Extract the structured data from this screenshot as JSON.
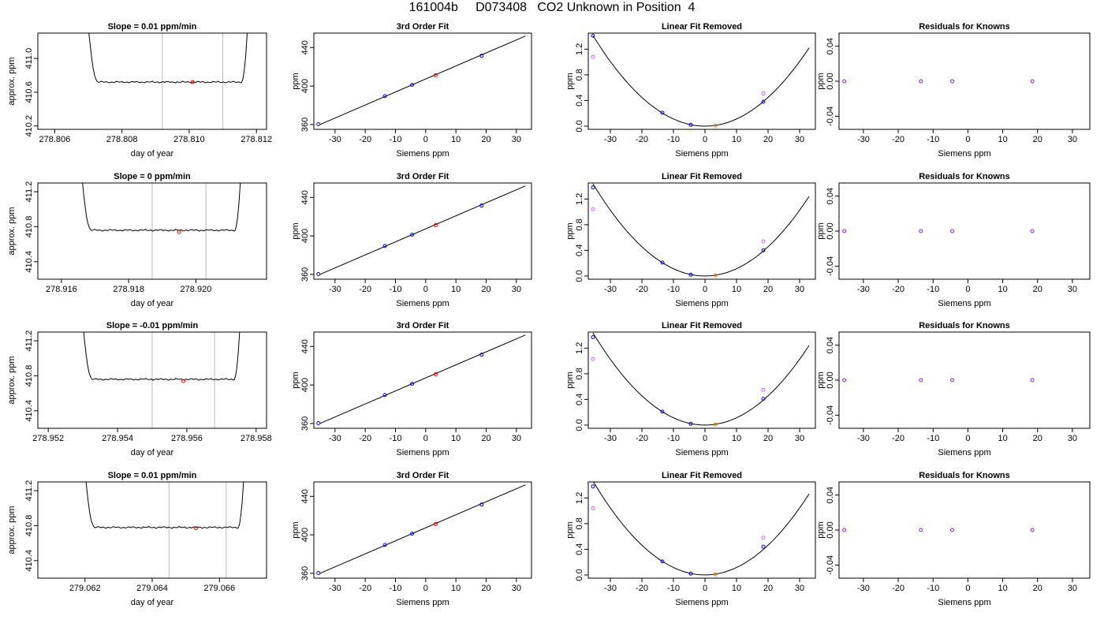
{
  "main_title": "161004b     D073408   CO2 Unknown in Position  4",
  "colors": {
    "known": "#0000ff",
    "unknown": "#ff0000",
    "residual_unknown": "#ff8000",
    "fit_ref": "#cc66ff",
    "line": "#000000",
    "vline": "#bbbbbb"
  },
  "chart_data": [
    {
      "type": "line",
      "row": 1,
      "col": 1,
      "title": "Slope =  0.01  ppm/min",
      "xlabel": "day of year",
      "ylabel": "approx. ppm",
      "xlim": [
        278.8055,
        278.8123
      ],
      "ylim": [
        410.16,
        411.3
      ],
      "xticks": [
        278.806,
        278.808,
        278.81,
        278.812
      ],
      "xticklabels": [
        "278.806",
        "278.808",
        "278.810",
        "278.812"
      ],
      "yticks": [
        410.2,
        410.6,
        411.0
      ],
      "yticklabels": [
        "410.2",
        "410.6",
        "411.0"
      ],
      "trace_window": [
        278.8069,
        278.8118
      ],
      "plateau": 410.72,
      "vlines": [
        278.8092,
        278.811
      ],
      "marker": {
        "x": 278.8101,
        "y": 410.72
      }
    },
    {
      "type": "scatter",
      "row": 1,
      "col": 2,
      "title": "3rd Order Fit",
      "xlabel": "Siemens ppm",
      "ylabel": "ppm",
      "xlim": [
        -37,
        35
      ],
      "ylim": [
        355,
        455
      ],
      "xticks": [
        -30,
        -20,
        -10,
        0,
        10,
        20,
        30
      ],
      "yticks": [
        360,
        400,
        440
      ],
      "line": [
        [
          -35,
          360
        ],
        [
          33,
          452
        ]
      ],
      "known_points": [
        [
          -35.5,
          360.3
        ],
        [
          -13.5,
          389.5
        ],
        [
          -4.5,
          401.2
        ],
        [
          18.5,
          431.5
        ]
      ],
      "unknown_point": [
        3.3,
        411.2
      ]
    },
    {
      "type": "scatter",
      "row": 1,
      "col": 3,
      "title": "Linear Fit Removed",
      "xlabel": "Siemens ppm",
      "ylabel": "ppm",
      "xlim": [
        -37,
        35
      ],
      "ylim": [
        -0.05,
        1.45
      ],
      "xticks": [
        -30,
        -20,
        -10,
        0,
        10,
        20,
        30
      ],
      "yticks": [
        0.0,
        0.4,
        0.8,
        1.2
      ],
      "yticklabels": [
        "0.0",
        "0.4",
        "0.8",
        "1.2"
      ],
      "curve_coef": 0.00112,
      "curve_xrange": [
        -35.5,
        33
      ],
      "known_points": [
        [
          -35.5,
          1.41
        ],
        [
          -13.5,
          0.21
        ],
        [
          -4.5,
          0.02
        ],
        [
          18.5,
          0.38
        ]
      ],
      "ref_points": [
        [
          -35.5,
          1.08
        ],
        [
          18.5,
          0.51
        ]
      ],
      "unknown_point": [
        3.3,
        0.01
      ]
    },
    {
      "type": "scatter",
      "row": 1,
      "col": 4,
      "title": "Residuals for Knowns",
      "xlabel": "Siemens ppm",
      "ylabel": "ppm",
      "xlim": [
        -37,
        35
      ],
      "ylim": [
        -0.055,
        0.055
      ],
      "xticks": [
        -30,
        -20,
        -10,
        0,
        10,
        20,
        30
      ],
      "yticks": [
        -0.04,
        0.0,
        0.04
      ],
      "yticklabels": [
        "-0.04",
        "0.00",
        "0.04"
      ],
      "known_points": [
        [
          -35.5,
          0
        ],
        [
          -13.5,
          0
        ],
        [
          -4.5,
          0
        ],
        [
          18.5,
          0
        ]
      ]
    },
    {
      "type": "line",
      "row": 2,
      "col": 1,
      "title": "Slope =  0  ppm/min",
      "xlabel": "day of year",
      "ylabel": "approx. ppm",
      "xlim": [
        278.9153,
        278.9221
      ],
      "ylim": [
        410.2,
        411.3
      ],
      "xticks": [
        278.916,
        278.918,
        278.92
      ],
      "xticklabels": [
        "278.916",
        "278.918",
        "278.920"
      ],
      "yticks": [
        410.4,
        410.8,
        411.2
      ],
      "yticklabels": [
        "410.4",
        "410.8",
        "411.2"
      ],
      "trace_window": [
        278.9165,
        278.9214
      ],
      "plateau": 410.76,
      "vlines": [
        278.9187,
        278.9203
      ],
      "marker": {
        "x": 278.9195,
        "y": 410.74
      }
    },
    {
      "type": "scatter",
      "row": 2,
      "col": 2,
      "title": "3rd Order Fit",
      "xlabel": "Siemens ppm",
      "ylabel": "ppm",
      "xlim": [
        -37,
        35
      ],
      "ylim": [
        355,
        455
      ],
      "xticks": [
        -30,
        -20,
        -10,
        0,
        10,
        20,
        30
      ],
      "yticks": [
        360,
        400,
        440
      ],
      "line": [
        [
          -35,
          360
        ],
        [
          33,
          452
        ]
      ],
      "known_points": [
        [
          -35.5,
          360.3
        ],
        [
          -13.5,
          389.5
        ],
        [
          -4.5,
          401.2
        ],
        [
          18.5,
          431.5
        ]
      ],
      "unknown_point": [
        3.3,
        411.2
      ]
    },
    {
      "type": "scatter",
      "row": 2,
      "col": 3,
      "title": "Linear Fit Removed",
      "xlabel": "Siemens ppm",
      "ylabel": "ppm",
      "xlim": [
        -37,
        35
      ],
      "ylim": [
        -0.05,
        1.45
      ],
      "xticks": [
        -30,
        -20,
        -10,
        0,
        10,
        20,
        30
      ],
      "yticks": [
        0.0,
        0.4,
        0.8,
        1.2
      ],
      "yticklabels": [
        "0.0",
        "0.4",
        "0.8",
        "1.2"
      ],
      "curve_coef": 0.00114,
      "curve_xrange": [
        -35.5,
        33
      ],
      "known_points": [
        [
          -35.5,
          1.38
        ],
        [
          -13.5,
          0.21
        ],
        [
          -4.5,
          0.02
        ],
        [
          18.5,
          0.4
        ]
      ],
      "ref_points": [
        [
          -35.5,
          1.04
        ],
        [
          18.5,
          0.54
        ]
      ],
      "unknown_point": [
        3.3,
        0.01
      ]
    },
    {
      "type": "scatter",
      "row": 2,
      "col": 4,
      "title": "Residuals for Knowns",
      "xlabel": "Siemens ppm",
      "ylabel": "ppm",
      "xlim": [
        -37,
        35
      ],
      "ylim": [
        -0.055,
        0.055
      ],
      "xticks": [
        -30,
        -20,
        -10,
        0,
        10,
        20,
        30
      ],
      "yticks": [
        -0.04,
        0.0,
        0.04
      ],
      "yticklabels": [
        "-0.04",
        "0.00",
        "0.04"
      ],
      "known_points": [
        [
          -35.5,
          0
        ],
        [
          -13.5,
          0
        ],
        [
          -4.5,
          0
        ],
        [
          18.5,
          0
        ]
      ]
    },
    {
      "type": "line",
      "row": 3,
      "col": 1,
      "title": "Slope =  -0.01  ppm/min",
      "xlabel": "day of year",
      "ylabel": "approx. ppm",
      "xlim": [
        278.9517,
        278.9583
      ],
      "ylim": [
        410.2,
        411.3
      ],
      "xticks": [
        278.952,
        278.954,
        278.956,
        278.958
      ],
      "xticklabels": [
        "278.952",
        "278.954",
        "278.956",
        "278.958"
      ],
      "yticks": [
        410.4,
        410.8,
        411.2
      ],
      "yticklabels": [
        "410.4",
        "410.8",
        "411.2"
      ],
      "trace_window": [
        278.9529,
        278.9576
      ],
      "plateau": 410.76,
      "vlines": [
        278.955,
        278.9568
      ],
      "marker": {
        "x": 278.9559,
        "y": 410.74
      }
    },
    {
      "type": "scatter",
      "row": 3,
      "col": 2,
      "title": "3rd Order Fit",
      "xlabel": "Siemens ppm",
      "ylabel": "ppm",
      "xlim": [
        -37,
        35
      ],
      "ylim": [
        355,
        455
      ],
      "xticks": [
        -30,
        -20,
        -10,
        0,
        10,
        20,
        30
      ],
      "yticks": [
        360,
        400,
        440
      ],
      "line": [
        [
          -35,
          360
        ],
        [
          33,
          452
        ]
      ],
      "known_points": [
        [
          -35.5,
          360.3
        ],
        [
          -13.5,
          389.5
        ],
        [
          -4.5,
          401.2
        ],
        [
          18.5,
          431.5
        ]
      ],
      "unknown_point": [
        3.3,
        411.2
      ]
    },
    {
      "type": "scatter",
      "row": 3,
      "col": 3,
      "title": "Linear Fit Removed",
      "xlabel": "Siemens ppm",
      "ylabel": "ppm",
      "xlim": [
        -37,
        35
      ],
      "ylim": [
        -0.05,
        1.45
      ],
      "xticks": [
        -30,
        -20,
        -10,
        0,
        10,
        20,
        30
      ],
      "yticks": [
        0.0,
        0.4,
        0.8,
        1.2
      ],
      "yticklabels": [
        "0.0",
        "0.4",
        "0.8",
        "1.2"
      ],
      "curve_coef": 0.00114,
      "curve_xrange": [
        -35.5,
        33
      ],
      "known_points": [
        [
          -35.5,
          1.37
        ],
        [
          -13.5,
          0.21
        ],
        [
          -4.5,
          0.02
        ],
        [
          18.5,
          0.41
        ]
      ],
      "ref_points": [
        [
          -35.5,
          1.03
        ],
        [
          18.5,
          0.55
        ]
      ],
      "unknown_point": [
        3.3,
        0.01
      ]
    },
    {
      "type": "scatter",
      "row": 3,
      "col": 4,
      "title": "Residuals for Knowns",
      "xlabel": "Siemens ppm",
      "ylabel": "ppm",
      "xlim": [
        -37,
        35
      ],
      "ylim": [
        -0.055,
        0.055
      ],
      "xticks": [
        -30,
        -20,
        -10,
        0,
        10,
        20,
        30
      ],
      "yticks": [
        -0.04,
        0.0,
        0.04
      ],
      "yticklabels": [
        "-0.04",
        "0.00",
        "0.04"
      ],
      "known_points": [
        [
          -35.5,
          0
        ],
        [
          -13.5,
          0
        ],
        [
          -4.5,
          0
        ],
        [
          18.5,
          0
        ]
      ]
    },
    {
      "type": "line",
      "row": 4,
      "col": 1,
      "title": "Slope =  0.01  ppm/min",
      "xlabel": "day of year",
      "ylabel": "approx. ppm",
      "xlim": [
        279.0606,
        279.0674
      ],
      "ylim": [
        410.2,
        411.3
      ],
      "xticks": [
        279.062,
        279.064,
        279.066
      ],
      "xticklabels": [
        "279.062",
        "279.064",
        "279.066"
      ],
      "yticks": [
        410.4,
        410.8,
        411.2
      ],
      "yticklabels": [
        "410.4",
        "410.8",
        "411.2"
      ],
      "trace_window": [
        279.0619,
        279.0668
      ],
      "plateau": 410.78,
      "vlines": [
        279.0645,
        279.0662
      ],
      "marker": {
        "x": 279.0653,
        "y": 410.77
      }
    },
    {
      "type": "scatter",
      "row": 4,
      "col": 2,
      "title": "3rd Order Fit",
      "xlabel": "Siemens ppm",
      "ylabel": "ppm",
      "xlim": [
        -37,
        35
      ],
      "ylim": [
        355,
        455
      ],
      "xticks": [
        -30,
        -20,
        -10,
        0,
        10,
        20,
        30
      ],
      "yticks": [
        360,
        400,
        440
      ],
      "line": [
        [
          -35,
          360
        ],
        [
          33,
          452
        ]
      ],
      "known_points": [
        [
          -35.5,
          360.3
        ],
        [
          -13.5,
          389.5
        ],
        [
          -4.5,
          401.2
        ],
        [
          18.5,
          431.5
        ]
      ],
      "unknown_point": [
        3.3,
        411.2
      ]
    },
    {
      "type": "scatter",
      "row": 4,
      "col": 3,
      "title": "Linear Fit Removed",
      "xlabel": "Siemens ppm",
      "ylabel": "ppm",
      "xlim": [
        -37,
        35
      ],
      "ylim": [
        -0.05,
        1.45
      ],
      "xticks": [
        -30,
        -20,
        -10,
        0,
        10,
        20,
        30
      ],
      "yticks": [
        0.0,
        0.4,
        0.8,
        1.2
      ],
      "yticklabels": [
        "0.0",
        "0.4",
        "0.8",
        "1.2"
      ],
      "curve_coef": 0.00116,
      "curve_xrange": [
        -35.5,
        33
      ],
      "known_points": [
        [
          -35.5,
          1.38
        ],
        [
          -13.5,
          0.21
        ],
        [
          -4.5,
          0.02
        ],
        [
          18.5,
          0.44
        ]
      ],
      "ref_points": [
        [
          -35.5,
          1.04
        ],
        [
          18.5,
          0.58
        ]
      ],
      "unknown_point": [
        3.3,
        0.01
      ]
    },
    {
      "type": "scatter",
      "row": 4,
      "col": 4,
      "title": "Residuals for Knowns",
      "xlabel": "Siemens ppm",
      "ylabel": "ppm",
      "xlim": [
        -37,
        35
      ],
      "ylim": [
        -0.055,
        0.055
      ],
      "xticks": [
        -30,
        -20,
        -10,
        0,
        10,
        20,
        30
      ],
      "yticks": [
        -0.04,
        0.0,
        0.04
      ],
      "yticklabels": [
        "-0.04",
        "0.00",
        "0.04"
      ],
      "known_points": [
        [
          -35.5,
          0
        ],
        [
          -13.5,
          0
        ],
        [
          -4.5,
          0
        ],
        [
          18.5,
          0
        ]
      ]
    }
  ]
}
